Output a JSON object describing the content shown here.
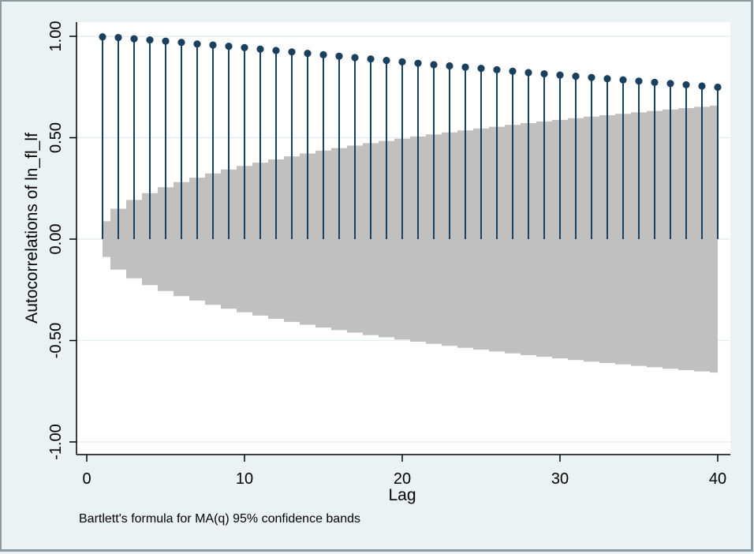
{
  "chart_data": {
    "type": "stem",
    "title": "",
    "xlabel": "Lag",
    "ylabel": "Autocorrelations of ln_fl_lf",
    "note": "Bartlett's formula for MA(q) 95% confidence bands",
    "xlim": [
      0,
      40
    ],
    "ylim": [
      -1,
      1
    ],
    "x_ticks": [
      0,
      10,
      20,
      30,
      40
    ],
    "y_ticks": [
      -1.0,
      -0.5,
      0.0,
      0.5,
      1.0
    ],
    "x_tick_labels": [
      "0",
      "10",
      "20",
      "30",
      "40"
    ],
    "y_tick_labels": [
      "-1.00",
      "-0.50",
      "0.00",
      "0.50",
      "1.00"
    ],
    "grid": true,
    "lags": [
      1,
      2,
      3,
      4,
      5,
      6,
      7,
      8,
      9,
      10,
      11,
      12,
      13,
      14,
      15,
      16,
      17,
      18,
      19,
      20,
      21,
      22,
      23,
      24,
      25,
      26,
      27,
      28,
      29,
      30,
      31,
      32,
      33,
      34,
      35,
      36,
      37,
      38,
      39,
      40
    ],
    "values": [
      0.997,
      0.994,
      0.988,
      0.982,
      0.976,
      0.97,
      0.962,
      0.957,
      0.951,
      0.944,
      0.937,
      0.93,
      0.923,
      0.916,
      0.909,
      0.902,
      0.895,
      0.888,
      0.881,
      0.874,
      0.867,
      0.86,
      0.854,
      0.848,
      0.842,
      0.835,
      0.828,
      0.821,
      0.815,
      0.809,
      0.803,
      0.797,
      0.791,
      0.785,
      0.779,
      0.773,
      0.767,
      0.761,
      0.755,
      0.749
    ],
    "confidence_band": [
      0.088,
      0.15,
      0.193,
      0.227,
      0.256,
      0.281,
      0.303,
      0.324,
      0.343,
      0.361,
      0.377,
      0.393,
      0.408,
      0.422,
      0.436,
      0.449,
      0.461,
      0.473,
      0.484,
      0.495,
      0.506,
      0.516,
      0.526,
      0.536,
      0.545,
      0.554,
      0.563,
      0.572,
      0.58,
      0.588,
      0.596,
      0.604,
      0.611,
      0.618,
      0.625,
      0.632,
      0.639,
      0.646,
      0.652,
      0.658
    ],
    "colors": {
      "stem": "#1b3f5e",
      "band": "#c0c0c0",
      "plot_bg": "#ffffff",
      "outer_bg": "#eaf2f3",
      "grid": "#e6eef0"
    }
  }
}
